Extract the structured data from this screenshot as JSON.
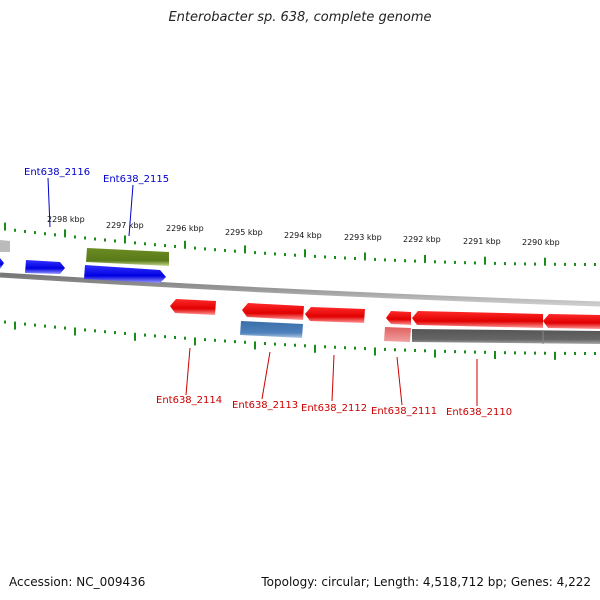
{
  "title": "Enterobacter sp. 638, complete genome",
  "footer": {
    "accession": "Accession: NC_009436",
    "summary": "Topology: circular; Length: 4,518,712 bp; Genes: 4,222"
  },
  "colors": {
    "forward_label": "#0000cc",
    "reverse_label": "#cc0000",
    "ticks": "#1a8c1a",
    "backbone": "#888888"
  },
  "ruler": {
    "ticks": [
      "2298 kbp",
      "2297 kbp",
      "2296 kbp",
      "2295 kbp",
      "2294 kbp",
      "2293 kbp",
      "2292 kbp",
      "2291 kbp",
      "2290 kbp"
    ]
  },
  "genes": {
    "forward": [
      {
        "label": "Ent638_2116",
        "type": "CDS"
      },
      {
        "label": "Ent638_2115",
        "type": "CDS"
      }
    ],
    "reverse": [
      {
        "label": "Ent638_2114",
        "type": "CDS"
      },
      {
        "label": "Ent638_2113",
        "type": "CDS"
      },
      {
        "label": "Ent638_2112",
        "type": "CDS"
      },
      {
        "label": "Ent638_2111",
        "type": "CDS"
      },
      {
        "label": "Ent638_2110",
        "type": "CDS"
      }
    ]
  }
}
